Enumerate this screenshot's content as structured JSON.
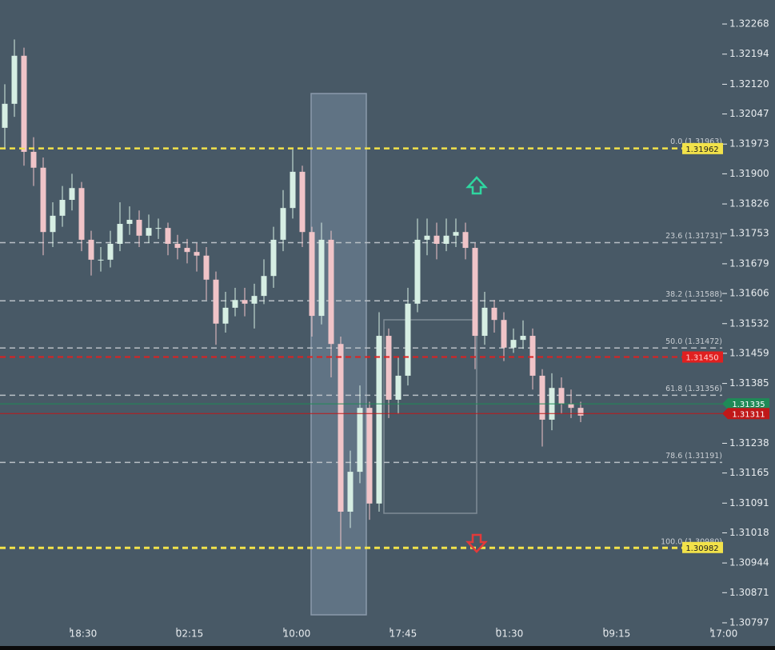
{
  "chart_data": {
    "type": "candlestick",
    "x": [
      0,
      1,
      2,
      3,
      4,
      5,
      6,
      7,
      8,
      9,
      10,
      11,
      12,
      13,
      14,
      15,
      16,
      17,
      18,
      19,
      20,
      21,
      22,
      23,
      24,
      25,
      26,
      27,
      28,
      29,
      30,
      31,
      32,
      33,
      34,
      35,
      36,
      37,
      38,
      39,
      40,
      41,
      42,
      43,
      44,
      45,
      46,
      47,
      48,
      49,
      50,
      51,
      52,
      53,
      54,
      55,
      56,
      57,
      58,
      59,
      60
    ],
    "open": [
      1.32013,
      1.32072,
      1.3219,
      1.31954,
      1.31915,
      1.31757,
      1.31797,
      1.31836,
      1.31865,
      1.31738,
      1.31689,
      1.31689,
      1.31728,
      1.31777,
      1.31787,
      1.31748,
      1.31767,
      1.31767,
      1.31728,
      1.31718,
      1.31708,
      1.31699,
      1.3164,
      1.31532,
      1.31571,
      1.3159,
      1.31581,
      1.316,
      1.31649,
      1.31738,
      1.31816,
      1.31905,
      1.31757,
      1.31551,
      1.31738,
      1.31482,
      1.3107,
      1.31168,
      1.31325,
      1.3109,
      1.31502,
      1.31345,
      1.31404,
      1.31581,
      1.31738,
      1.31748,
      1.31728,
      1.31748,
      1.31757,
      1.31718,
      1.31502,
      1.31571,
      1.31541,
      1.31473,
      1.31492,
      1.31502,
      1.31404,
      1.31296,
      1.31374,
      1.31335,
      1.31325
    ],
    "high": [
      1.3212,
      1.3223,
      1.3221,
      1.3199,
      1.3194,
      1.3183,
      1.3187,
      1.319,
      1.3188,
      1.3176,
      1.3172,
      1.3176,
      1.3183,
      1.3182,
      1.3181,
      1.318,
      1.3179,
      1.3178,
      1.3175,
      1.3174,
      1.3173,
      1.3172,
      1.3166,
      1.3161,
      1.3162,
      1.3162,
      1.3163,
      1.3169,
      1.3177,
      1.3186,
      1.3196,
      1.3192,
      1.3177,
      1.3178,
      1.3176,
      1.315,
      1.3122,
      1.3138,
      1.3134,
      1.3156,
      1.3152,
      1.3145,
      1.3162,
      1.3179,
      1.3179,
      1.3178,
      1.3179,
      1.3179,
      1.3178,
      1.3173,
      1.3161,
      1.3159,
      1.3156,
      1.3152,
      1.3154,
      1.3152,
      1.3142,
      1.3141,
      1.314,
      1.3137,
      1.3134
    ],
    "low": [
      1.3196,
      1.3204,
      1.3192,
      1.3187,
      1.317,
      1.3172,
      1.3177,
      1.3181,
      1.3171,
      1.3165,
      1.3166,
      1.3167,
      1.3171,
      1.3175,
      1.3172,
      1.3173,
      1.3174,
      1.317,
      1.3169,
      1.3168,
      1.3166,
      1.3159,
      1.3148,
      1.3151,
      1.3155,
      1.3155,
      1.3152,
      1.3158,
      1.3162,
      1.3171,
      1.3179,
      1.3172,
      1.315,
      1.3153,
      1.314,
      1.3098,
      1.3103,
      1.3114,
      1.3105,
      1.3107,
      1.313,
      1.3131,
      1.3138,
      1.3156,
      1.317,
      1.3169,
      1.3171,
      1.3172,
      1.3169,
      1.3142,
      1.3148,
      1.3151,
      1.3144,
      1.3146,
      1.3147,
      1.3137,
      1.3123,
      1.3127,
      1.3131,
      1.313,
      1.3129
    ],
    "close": [
      1.32072,
      1.3219,
      1.31954,
      1.31915,
      1.31757,
      1.31797,
      1.31836,
      1.31865,
      1.31738,
      1.31689,
      1.31689,
      1.31728,
      1.31777,
      1.31787,
      1.31748,
      1.31767,
      1.31767,
      1.31728,
      1.31718,
      1.31708,
      1.31699,
      1.3164,
      1.31532,
      1.31571,
      1.3159,
      1.31581,
      1.316,
      1.31649,
      1.31738,
      1.31816,
      1.31905,
      1.31757,
      1.31551,
      1.31738,
      1.31482,
      1.3107,
      1.31168,
      1.31325,
      1.3109,
      1.31502,
      1.31345,
      1.31404,
      1.31581,
      1.31738,
      1.31748,
      1.31728,
      1.31748,
      1.31757,
      1.31718,
      1.31502,
      1.31571,
      1.31541,
      1.31473,
      1.31492,
      1.31502,
      1.31404,
      1.31296,
      1.31374,
      1.31335,
      1.31325,
      1.31306
    ],
    "up_color": "#d6eee3",
    "down_color": "#f0c4c8",
    "xlim": [
      -0.5,
      74.5
    ],
    "xticks": [
      {
        "value": 6.83,
        "label": "18:30"
      },
      {
        "value": 17.92,
        "label": "02:15"
      },
      {
        "value": 29.08,
        "label": "10:00"
      },
      {
        "value": 40.17,
        "label": "17:45"
      },
      {
        "value": 51.25,
        "label": "01:30"
      },
      {
        "value": 62.42,
        "label": "09:15"
      },
      {
        "value": 73.58,
        "label": "17:00"
      }
    ],
    "ylim": [
      1.3074,
      1.32327
    ],
    "yticks": [
      1.32268,
      1.32194,
      {
        "value": 1.3212,
        "label": "1.32120"
      },
      1.32047,
      1.31973,
      {
        "value": 1.319,
        "label": "1.31900"
      },
      1.31826,
      1.31753,
      1.31679,
      1.31606,
      1.31532,
      1.31459,
      1.31385,
      1.31238,
      1.31165,
      1.31091,
      1.31018,
      1.30944,
      1.30871,
      1.30797
    ],
    "fib_levels": {
      "values": [
        1.31963,
        1.31731,
        1.31588,
        1.31472,
        1.31356,
        1.31191,
        1.3098
      ],
      "value_labels": [
        "0.0 (1.31963)",
        "23.6 (1.31731)",
        "38.2 (1.31588)",
        "50.0 (1.31472)",
        "61.8 (1.31356)",
        "78.6 (1.31191)",
        "100.0 (1.30980)"
      ],
      "colors": [
        "#f2e24a",
        "#b9c0c6",
        "#b9c0c6",
        "#b9c0c6",
        "#b9c0c6",
        "#b9c0c6",
        "#f2e24a"
      ]
    },
    "price_lines": {
      "values": [
        1.31962,
        1.30982,
        1.3145,
        1.31335,
        1.31311
      ],
      "value_labels": [
        "1.31962",
        "1.30982",
        "1.31450",
        "1.31335",
        "1.31311"
      ],
      "colors": [
        "#f2e24a",
        "#f2e24a",
        "#e02020",
        "#1f8a57",
        "#c01818"
      ],
      "styles": [
        "dashed",
        "dashed",
        "dashed",
        "solid",
        "solid"
      ]
    }
  }
}
